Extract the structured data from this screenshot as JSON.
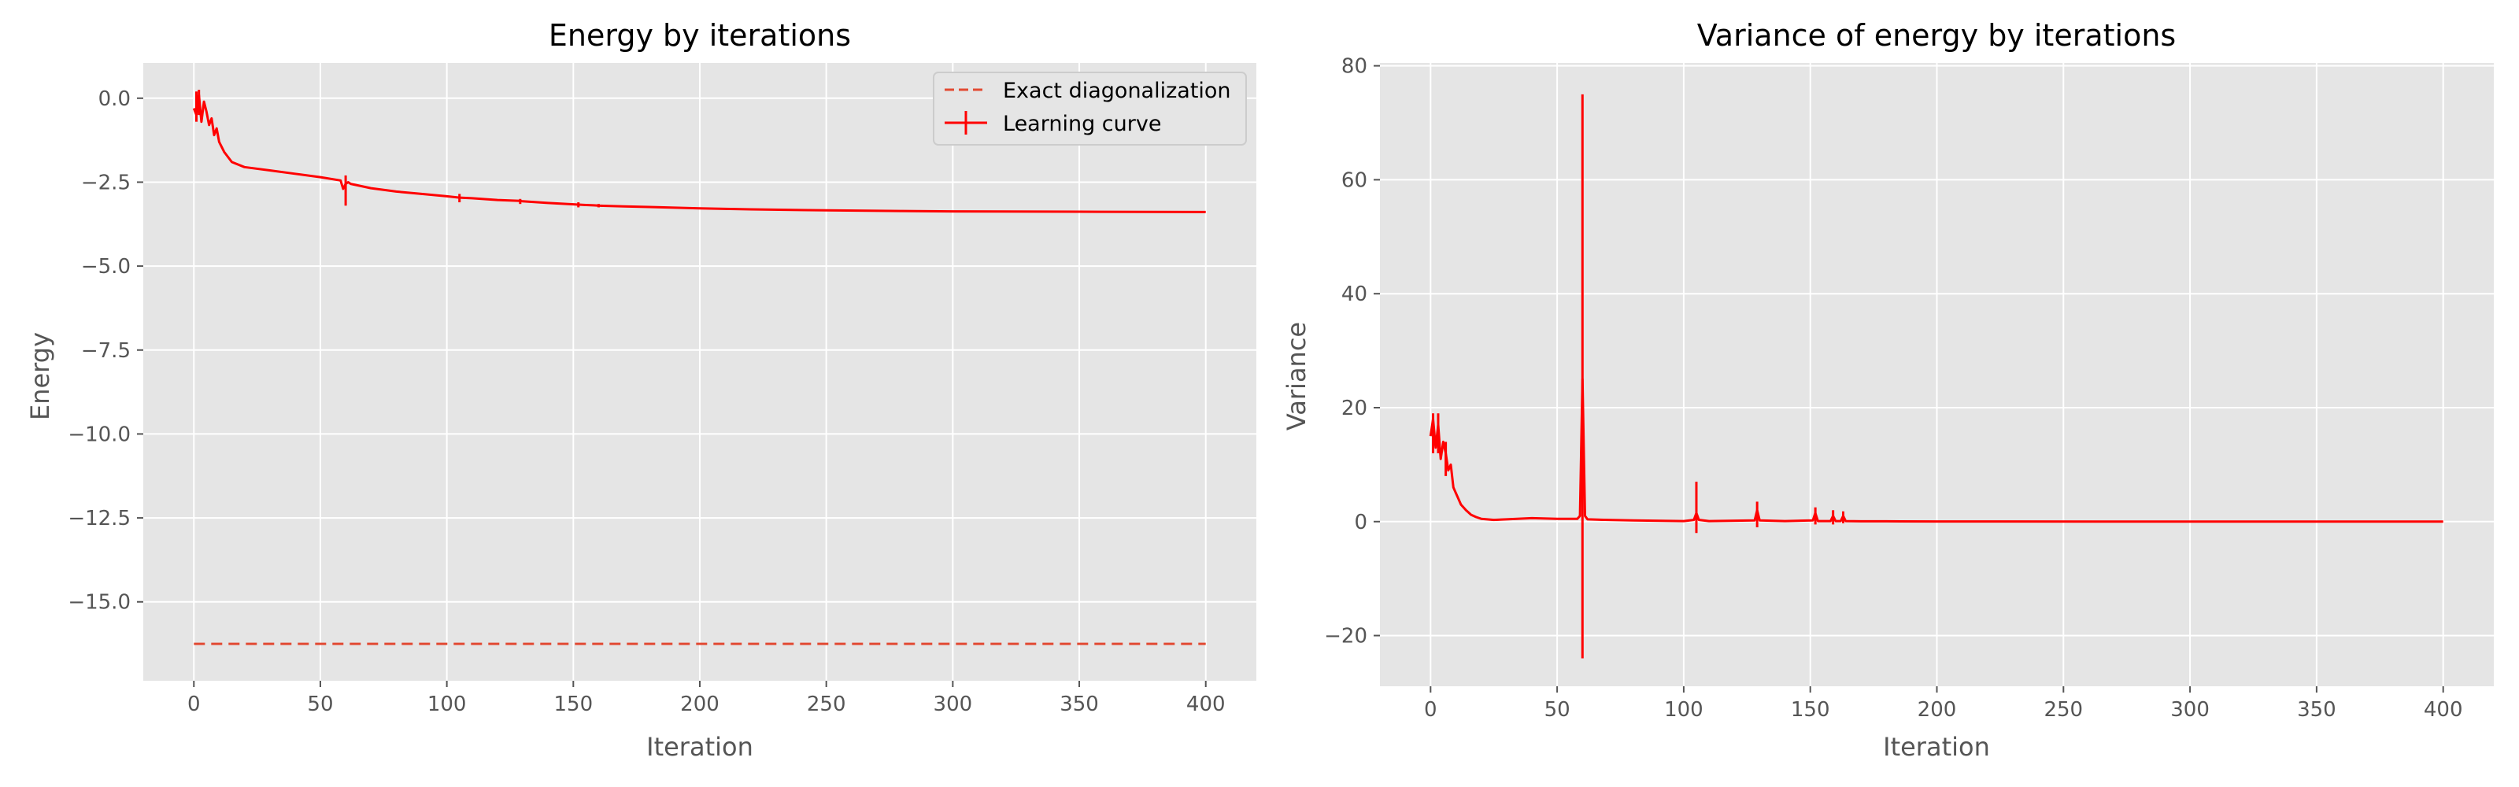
{
  "colors": {
    "axes_bg": "#e5e5e5",
    "grid": "#ffffff",
    "series": "#ff0000",
    "exact": "#e24a33",
    "tick_text": "#555555"
  },
  "chart_data": [
    {
      "type": "line",
      "title": "Energy by iterations",
      "xlabel": "Iteration",
      "ylabel": "Energy",
      "xlim": [
        -20,
        420
      ],
      "ylim": [
        -17.35,
        1.05
      ],
      "xticks": [
        0,
        50,
        100,
        150,
        200,
        250,
        300,
        350,
        400
      ],
      "yticks": [
        0.0,
        -2.5,
        -5.0,
        -7.5,
        -10.0,
        -12.5,
        -15.0
      ],
      "ytick_labels": [
        "0.0",
        "−2.5",
        "−5.0",
        "−7.5",
        "−10.0",
        "−12.5",
        "−15.0"
      ],
      "grid": true,
      "legend": {
        "placement": "top-right",
        "entries": [
          "Exact diagonalization",
          "Learning curve"
        ]
      },
      "series": [
        {
          "name": "Exact diagonalization",
          "style": "dashed",
          "x": [
            0,
            400
          ],
          "y": [
            -16.25,
            -16.25
          ]
        },
        {
          "name": "Learning curve",
          "style": "solid-errorbar",
          "x": [
            0,
            1,
            2,
            3,
            4,
            5,
            6,
            7,
            8,
            9,
            10,
            12,
            15,
            20,
            30,
            40,
            50,
            58,
            59,
            60,
            61,
            62,
            70,
            80,
            90,
            100,
            105,
            110,
            120,
            129,
            130,
            140,
            150,
            152,
            155,
            158,
            160,
            170,
            180,
            200,
            220,
            250,
            280,
            300,
            350,
            400
          ],
          "y": [
            -0.3,
            -0.5,
            0.1,
            -0.7,
            -0.1,
            -0.4,
            -0.8,
            -0.6,
            -1.1,
            -0.9,
            -1.3,
            -1.6,
            -1.9,
            -2.05,
            -2.15,
            -2.25,
            -2.35,
            -2.45,
            -2.7,
            -2.55,
            -2.5,
            -2.55,
            -2.68,
            -2.78,
            -2.85,
            -2.92,
            -2.96,
            -2.98,
            -3.03,
            -3.06,
            -3.07,
            -3.12,
            -3.16,
            -3.17,
            -3.18,
            -3.19,
            -3.2,
            -3.22,
            -3.24,
            -3.28,
            -3.31,
            -3.34,
            -3.36,
            -3.37,
            -3.38,
            -3.39
          ],
          "errors": [
            {
              "x": 1,
              "low": -0.7,
              "high": 0.2
            },
            {
              "x": 2,
              "low": -0.5,
              "high": 0.25
            },
            {
              "x": 60,
              "low": -3.2,
              "high": -2.3
            },
            {
              "x": 105,
              "low": -3.1,
              "high": -2.85
            },
            {
              "x": 129,
              "low": -3.15,
              "high": -3.0
            },
            {
              "x": 152,
              "low": -3.25,
              "high": -3.1
            },
            {
              "x": 160,
              "low": -3.25,
              "high": -3.15
            }
          ]
        }
      ]
    },
    {
      "type": "line",
      "title": "Variance of energy by iterations",
      "xlabel": "Iteration",
      "ylabel": "Variance",
      "xlim": [
        -20,
        420
      ],
      "ylim": [
        -28.9,
        80.5
      ],
      "xticks": [
        0,
        50,
        100,
        150,
        200,
        250,
        300,
        350,
        400
      ],
      "yticks": [
        80,
        60,
        40,
        20,
        0,
        -20
      ],
      "ytick_labels": [
        "80",
        "60",
        "40",
        "20",
        "0",
        "−20"
      ],
      "grid": true,
      "series": [
        {
          "name": "Variance",
          "style": "solid-errorbar",
          "x": [
            0,
            1,
            2,
            3,
            4,
            5,
            6,
            7,
            8,
            9,
            10,
            11,
            12,
            14,
            16,
            18,
            20,
            25,
            30,
            40,
            50,
            58,
            59,
            60,
            61,
            62,
            70,
            80,
            100,
            104,
            105,
            106,
            110,
            128,
            129,
            130,
            140,
            151,
            152,
            153,
            158,
            159,
            160,
            162,
            163,
            164,
            170,
            180,
            200,
            300,
            400
          ],
          "y": [
            15,
            18,
            13,
            17,
            11,
            14,
            12,
            9,
            10,
            6,
            5,
            4,
            3,
            2,
            1.2,
            0.8,
            0.5,
            0.3,
            0.4,
            0.6,
            0.5,
            0.5,
            1,
            25,
            1,
            0.4,
            0.3,
            0.2,
            0.1,
            0.3,
            1.5,
            0.3,
            0.1,
            0.2,
            2,
            0.2,
            0.1,
            0.2,
            1.5,
            0.1,
            0.1,
            1,
            0.1,
            0.1,
            1,
            0.1,
            0.05,
            0.05,
            0.02,
            0.0,
            0.0
          ],
          "errors": [
            {
              "x": 1,
              "low": 12,
              "high": 19
            },
            {
              "x": 3,
              "low": 12,
              "high": 19
            },
            {
              "x": 6,
              "low": 8,
              "high": 14
            },
            {
              "x": 60,
              "low": -24,
              "high": 75
            },
            {
              "x": 105,
              "low": -2,
              "high": 7
            },
            {
              "x": 129,
              "low": -1,
              "high": 3.5
            },
            {
              "x": 152,
              "low": -0.5,
              "high": 2.5
            },
            {
              "x": 159,
              "low": -0.5,
              "high": 2
            },
            {
              "x": 163,
              "low": -0.3,
              "high": 1.8
            }
          ]
        }
      ]
    }
  ]
}
